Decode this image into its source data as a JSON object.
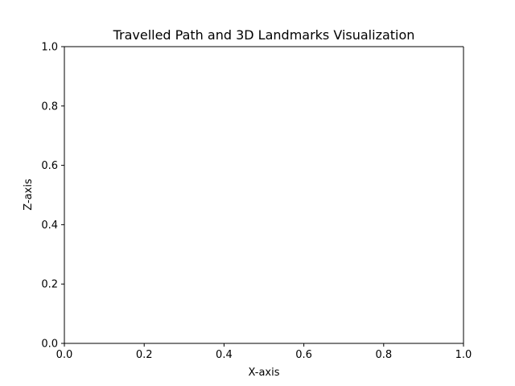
{
  "chart_data": {
    "type": "line",
    "title": "Travelled Path and 3D Landmarks Visualization",
    "xlabel": "X-axis",
    "ylabel": "Z-axis",
    "xlim": [
      0.0,
      1.0
    ],
    "ylim": [
      0.0,
      1.0
    ],
    "xticks": [
      0.0,
      0.2,
      0.4,
      0.6,
      0.8,
      1.0
    ],
    "yticks": [
      0.0,
      0.2,
      0.4,
      0.6,
      0.8,
      1.0
    ],
    "xtick_labels": [
      "0.0",
      "0.2",
      "0.4",
      "0.6",
      "0.8",
      "1.0"
    ],
    "ytick_labels": [
      "0.0",
      "0.2",
      "0.4",
      "0.6",
      "0.8",
      "1.0"
    ],
    "series": [],
    "grid": false,
    "legend": "none"
  }
}
